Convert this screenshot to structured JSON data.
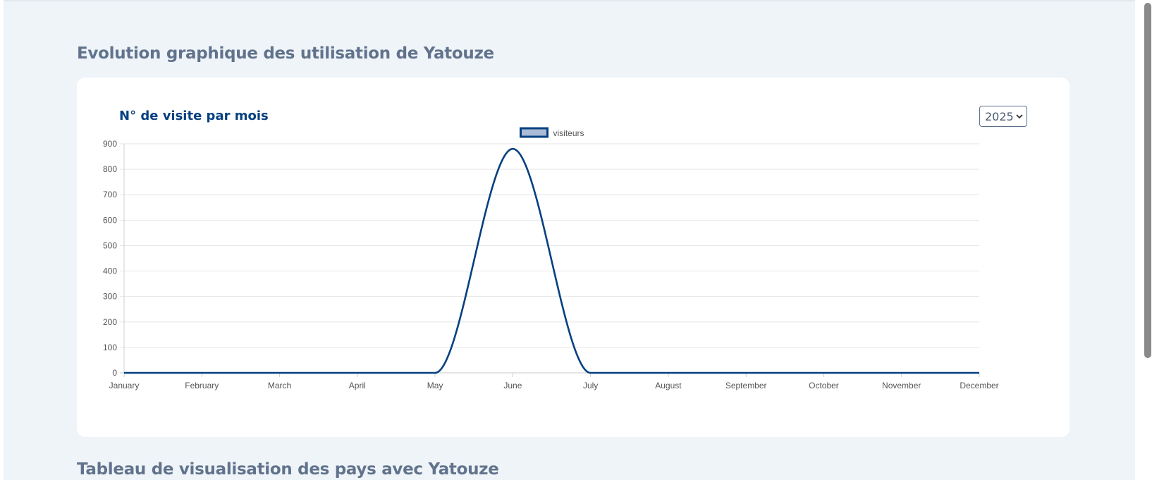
{
  "sections": {
    "chart_section_title": "Evolution graphique des utilisation de Yatouze",
    "table_section_title": "Tableau de visualisation des pays avec Yatouze"
  },
  "card": {
    "heading": "N° de visite par mois",
    "year_select": {
      "value": "2025"
    }
  },
  "chart_data": {
    "type": "line",
    "categories": [
      "January",
      "February",
      "March",
      "April",
      "May",
      "June",
      "July",
      "August",
      "September",
      "October",
      "November",
      "December"
    ],
    "series": [
      {
        "name": "visiteurs",
        "values": [
          0,
          0,
          0,
          0,
          0,
          880,
          0,
          0,
          0,
          0,
          0,
          0
        ],
        "color": "#064080",
        "fill": "#abbcd6"
      }
    ],
    "ylim": [
      0,
      900
    ],
    "yticks": [
      0,
      100,
      200,
      300,
      400,
      500,
      600,
      700,
      800,
      900
    ],
    "grid": true,
    "legend": "top-center",
    "curve": "smooth"
  }
}
